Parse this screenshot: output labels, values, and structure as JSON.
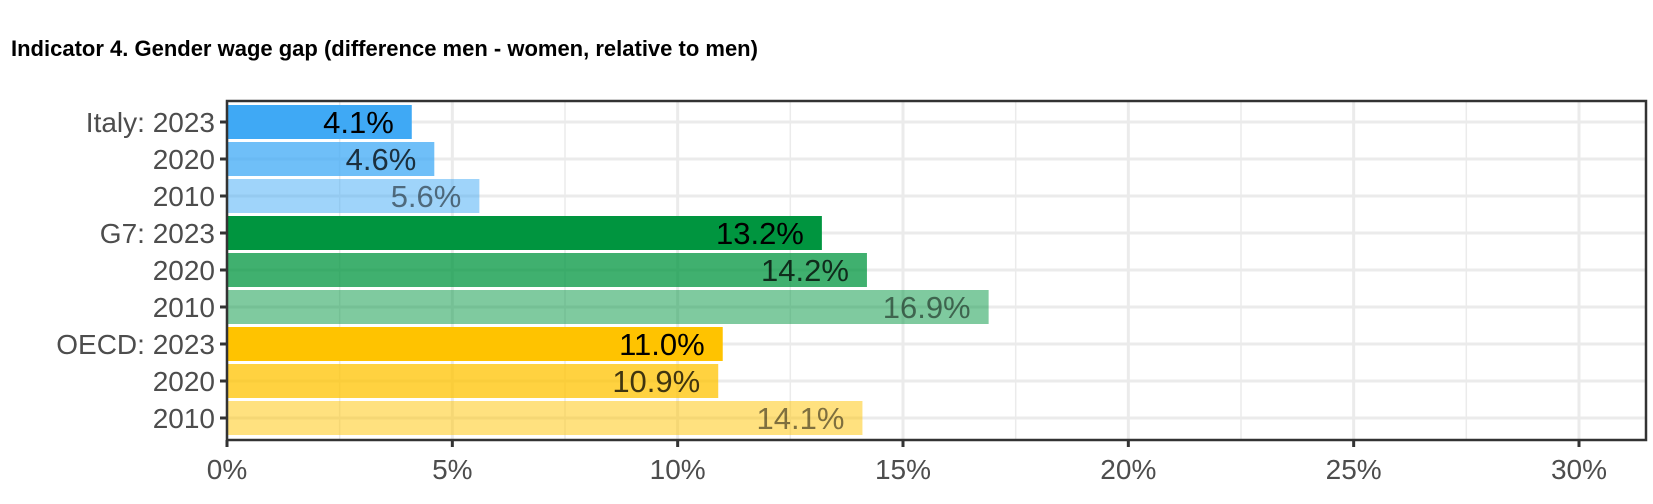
{
  "chart_data": {
    "type": "bar",
    "orientation": "horizontal",
    "title": "Indicator 4. Gender wage gap (difference men - women, relative to men)",
    "xlabel": "",
    "ylabel": "",
    "xlim": [
      0,
      31.5
    ],
    "x_ticks": [
      "0%",
      "5%",
      "10%",
      "15%",
      "20%",
      "25%",
      "30%"
    ],
    "x_tick_values": [
      0,
      5,
      10,
      15,
      20,
      25,
      30
    ],
    "grid": true,
    "categories": [
      "Italy: 2023",
      "2020",
      "2010",
      "G7: 2023",
      "2020",
      "2010",
      "OECD: 2023",
      "2020",
      "2010"
    ],
    "values": [
      4.1,
      4.6,
      5.6,
      13.2,
      14.2,
      16.9,
      11.0,
      10.9,
      14.1
    ],
    "labels": [
      "4.1%",
      "4.6%",
      "5.6%",
      "13.2%",
      "14.2%",
      "16.9%",
      "11.0%",
      "10.9%",
      "14.1%"
    ],
    "groups": [
      "Italy",
      "Italy",
      "Italy",
      "G7",
      "G7",
      "G7",
      "OECD",
      "OECD",
      "OECD"
    ],
    "years": [
      "2023",
      "2020",
      "2010",
      "2023",
      "2020",
      "2010",
      "2023",
      "2020",
      "2010"
    ],
    "colors": {
      "Italy": "#3fa9f5",
      "G7": "#00953f",
      "OECD": "#ffc300"
    },
    "opacity_by_year": {
      "2023": 1,
      "2020": 0.75,
      "2010": 0.5
    }
  }
}
